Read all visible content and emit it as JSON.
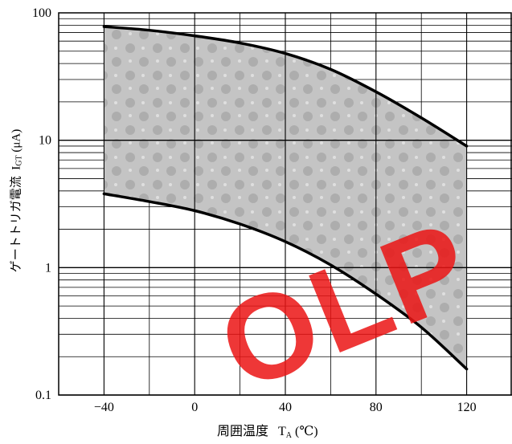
{
  "chart_data": {
    "type": "area",
    "title": "",
    "xlabel": "周囲温度 T_A (℃)",
    "ylabel": "ゲートトリガ電流 I_GT (μA)",
    "xlabel_parts": {
      "main": "周囲温度",
      "sym": "T",
      "sub": "A",
      "unit": "(℃)"
    },
    "ylabel_parts": {
      "main": "ゲートトリガ電流",
      "sym": "I",
      "sub": "GT",
      "unit": "(μA)"
    },
    "xlim": [
      -40,
      120
    ],
    "ylim": [
      0.1,
      100
    ],
    "y_scale": "log",
    "grid": true,
    "x_ticks": [
      {
        "value": -40,
        "label": "−40"
      },
      {
        "value": 0,
        "label": "0"
      },
      {
        "value": 40,
        "label": "40"
      },
      {
        "value": 80,
        "label": "80"
      },
      {
        "value": 120,
        "label": "120"
      }
    ],
    "y_ticks": [
      {
        "value": 100,
        "label": "100"
      },
      {
        "value": 10,
        "label": "10"
      },
      {
        "value": 1,
        "label": "1"
      },
      {
        "value": 0.1,
        "label": "0.1"
      }
    ],
    "series": [
      {
        "role": "upper",
        "x": [
          -40,
          -20,
          0,
          20,
          40,
          60,
          80,
          100,
          120
        ],
        "y": [
          78,
          73,
          66,
          58,
          48,
          36,
          24,
          15,
          9
        ]
      },
      {
        "role": "lower",
        "x": [
          -40,
          -20,
          0,
          20,
          40,
          60,
          80,
          100,
          120
        ],
        "y": [
          3.8,
          3.3,
          2.8,
          2.2,
          1.6,
          1.05,
          0.62,
          0.34,
          0.16
        ]
      }
    ],
    "band_color": "#b8b8b8",
    "line_color": "#000000"
  },
  "watermark": "OLP"
}
